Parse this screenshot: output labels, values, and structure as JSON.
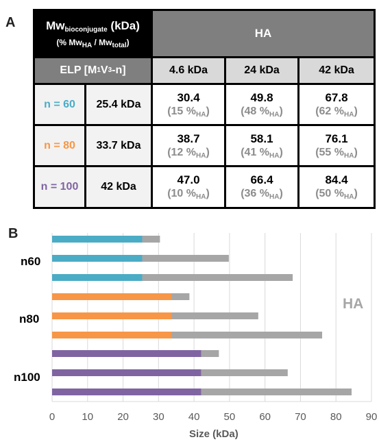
{
  "panel_a": {
    "label": "A",
    "title_main_prefix": "Mw",
    "title_main_sub": "bioconjugate",
    "title_main_suffix": " (kDa)",
    "title_sub_open": "(% Mw",
    "title_sub_sub1": "HA",
    "title_sub_mid": " / Mw",
    "title_sub_sub2": "total",
    "title_sub_close": ")",
    "ha_header": "HA",
    "elp_prefix": "ELP [M",
    "elp_sub1": "1",
    "elp_mid": "V",
    "elp_sub2": "3",
    "elp_suffix": "-n]",
    "ha_columns": [
      "4.6 kDa",
      "24 kDa",
      "42 kDa"
    ],
    "pct_subscript": "HA",
    "rows": [
      {
        "label": "n = 60",
        "color": "#4bacc6",
        "mw": "25.4 kDa",
        "cells": [
          {
            "value": "30.4",
            "pct": "(15 %",
            "close": ")"
          },
          {
            "value": "49.8",
            "pct": "(48 %",
            "close": ")"
          },
          {
            "value": "67.8",
            "pct": "(62 %",
            "close": ")"
          }
        ]
      },
      {
        "label": "n = 80",
        "color": "#f79646",
        "mw": "33.7 kDa",
        "cells": [
          {
            "value": "38.7",
            "pct": "(12 %",
            "close": ")"
          },
          {
            "value": "58.1",
            "pct": "(41 %",
            "close": ")"
          },
          {
            "value": "76.1",
            "pct": "(55 %",
            "close": ")"
          }
        ]
      },
      {
        "label": "n = 100",
        "color": "#8064a2",
        "mw": "42 kDa",
        "cells": [
          {
            "value": "47.0",
            "pct": "(10 %",
            "close": ")"
          },
          {
            "value": "66.4",
            "pct": "(36 %",
            "close": ")"
          },
          {
            "value": "84.4",
            "pct": "(50 %",
            "close": ")"
          }
        ]
      }
    ]
  },
  "panel_b": {
    "label": "B",
    "ha_label": "HA"
  },
  "chart_data": {
    "type": "bar",
    "orientation": "horizontal",
    "stacked": true,
    "xlabel": "Size (kDa)",
    "xlim": [
      0,
      90
    ],
    "xticks": [
      0,
      10,
      20,
      30,
      40,
      50,
      60,
      70,
      80,
      90
    ],
    "grid": true,
    "groups": [
      {
        "name": "n60",
        "color": "#4bacc6",
        "elp": [
          25.4,
          25.4,
          25.4
        ],
        "total": [
          30.4,
          49.8,
          67.8
        ]
      },
      {
        "name": "n80",
        "color": "#f79646",
        "elp": [
          33.7,
          33.7,
          33.7
        ],
        "total": [
          38.7,
          58.1,
          76.1
        ]
      },
      {
        "name": "n100",
        "color": "#8064a2",
        "elp": [
          42,
          42,
          42
        ],
        "total": [
          47.0,
          66.4,
          84.4
        ]
      }
    ],
    "ha_color": "#a6a6a6"
  }
}
